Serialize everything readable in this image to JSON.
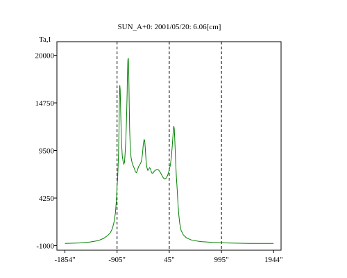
{
  "chart_data": {
    "type": "line",
    "title": "SUN_A+0: 2001/05/20: 6.06[cm]",
    "ylabel": "Ta,I",
    "xlabel": "",
    "xlim": [
      -2000,
      2080
    ],
    "ylim": [
      -1500,
      21500
    ],
    "x_ticks": [
      {
        "value": -1854,
        "label": "-1854\""
      },
      {
        "value": -905,
        "label": "-905\""
      },
      {
        "value": 45,
        "label": "45\""
      },
      {
        "value": 995,
        "label": "995\""
      },
      {
        "value": 1944,
        "label": "1944\""
      }
    ],
    "y_ticks": [
      {
        "value": 20000,
        "label": "20000"
      },
      {
        "value": 14750,
        "label": "14750"
      },
      {
        "value": 9500,
        "label": "9500"
      },
      {
        "value": 4250,
        "label": "4250"
      },
      {
        "value": -1000,
        "label": "-1000"
      }
    ],
    "reference_lines_x": [
      -905,
      45,
      995
    ],
    "grid": false,
    "series": [
      {
        "color": "#008000",
        "points": [
          [
            -1854,
            -750
          ],
          [
            -1600,
            -700
          ],
          [
            -1400,
            -600
          ],
          [
            -1250,
            -450
          ],
          [
            -1150,
            -200
          ],
          [
            -1080,
            100
          ],
          [
            -1030,
            400
          ],
          [
            -990,
            900
          ],
          [
            -960,
            1600
          ],
          [
            -935,
            2600
          ],
          [
            -915,
            4200
          ],
          [
            -905,
            5600
          ],
          [
            -895,
            6400
          ],
          [
            -888,
            7400
          ],
          [
            -878,
            9200
          ],
          [
            -870,
            12000
          ],
          [
            -862,
            15000
          ],
          [
            -855,
            16700
          ],
          [
            -848,
            16200
          ],
          [
            -838,
            13500
          ],
          [
            -825,
            10500
          ],
          [
            -810,
            8900
          ],
          [
            -795,
            8300
          ],
          [
            -782,
            8000
          ],
          [
            -770,
            8200
          ],
          [
            -758,
            9200
          ],
          [
            -745,
            10800
          ],
          [
            -732,
            13200
          ],
          [
            -722,
            15800
          ],
          [
            -715,
            18200
          ],
          [
            -708,
            19500
          ],
          [
            -700,
            19700
          ],
          [
            -692,
            17800
          ],
          [
            -684,
            14600
          ],
          [
            -676,
            11800
          ],
          [
            -664,
            9700
          ],
          [
            -650,
            8700
          ],
          [
            -630,
            8100
          ],
          [
            -610,
            7800
          ],
          [
            -590,
            7500
          ],
          [
            -570,
            7150
          ],
          [
            -552,
            7050
          ],
          [
            -535,
            7300
          ],
          [
            -515,
            7700
          ],
          [
            -495,
            7900
          ],
          [
            -475,
            8100
          ],
          [
            -455,
            8500
          ],
          [
            -440,
            9300
          ],
          [
            -427,
            10200
          ],
          [
            -414,
            10700
          ],
          [
            -402,
            10600
          ],
          [
            -390,
            9600
          ],
          [
            -377,
            8300
          ],
          [
            -362,
            7600
          ],
          [
            -345,
            7300
          ],
          [
            -330,
            7400
          ],
          [
            -315,
            7600
          ],
          [
            -300,
            7500
          ],
          [
            -285,
            7200
          ],
          [
            -270,
            7000
          ],
          [
            -250,
            7000
          ],
          [
            -230,
            7200
          ],
          [
            -210,
            7300
          ],
          [
            -185,
            7400
          ],
          [
            -160,
            7400
          ],
          [
            -135,
            7250
          ],
          [
            -110,
            7000
          ],
          [
            -85,
            6700
          ],
          [
            -60,
            6450
          ],
          [
            -35,
            6350
          ],
          [
            -10,
            6450
          ],
          [
            15,
            6750
          ],
          [
            40,
            7250
          ],
          [
            65,
            7900
          ],
          [
            85,
            8900
          ],
          [
            100,
            10000
          ],
          [
            112,
            11100
          ],
          [
            120,
            11800
          ],
          [
            128,
            12200
          ],
          [
            136,
            11900
          ],
          [
            145,
            10800
          ],
          [
            155,
            9200
          ],
          [
            165,
            7800
          ],
          [
            175,
            6500
          ],
          [
            185,
            5600
          ],
          [
            200,
            4000
          ],
          [
            215,
            2600
          ],
          [
            235,
            1500
          ],
          [
            260,
            700
          ],
          [
            300,
            200
          ],
          [
            360,
            -150
          ],
          [
            460,
            -400
          ],
          [
            620,
            -550
          ],
          [
            840,
            -640
          ],
          [
            1100,
            -700
          ],
          [
            1500,
            -750
          ],
          [
            1944,
            -760
          ]
        ]
      }
    ]
  }
}
